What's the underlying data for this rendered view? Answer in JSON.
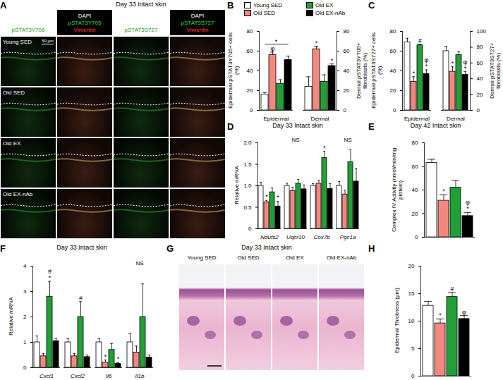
{
  "chart_data": [
    {
      "panel": "B",
      "type": "bar",
      "categories": [
        "Epidermal"
      ],
      "y_label": "Epidermal pSTAT3Y705+ cells (%)",
      "ylim": [
        0,
        80
      ],
      "yticks": [
        0,
        20,
        40,
        60,
        80
      ],
      "legend": "top",
      "series": [
        {
          "name": "Young SED",
          "color": "#ffffff",
          "values": [
            16
          ],
          "errors": [
            2
          ]
        },
        {
          "name": "Old SED",
          "color": "#f4877f",
          "values": [
            56
          ],
          "errors": [
            3
          ],
          "annotations": [
            "φ"
          ]
        },
        {
          "name": "Old EX",
          "color": "#21a038",
          "values": [
            27
          ],
          "errors": [
            4
          ]
        },
        {
          "name": "Old EX-nAb",
          "color": "#000000",
          "values": [
            51
          ],
          "errors": [
            4
          ]
        }
      ],
      "brackets": [
        {
          "category": "Epidermal",
          "from": "Young SED",
          "to": "Old EX-nAb",
          "label": "*"
        }
      ]
    },
    {
      "type": "bar",
      "categories": [
        "Dermal"
      ],
      "y2_label": "Dermal pSTAT3Y705+ fibroblasts (%)",
      "y2lim": [
        0,
        80
      ],
      "y2ticks": [
        0,
        20,
        40,
        60,
        80
      ],
      "series": [
        {
          "name": "Young SED",
          "color": "#ffffff",
          "axis": "y2",
          "values": [
            24
          ],
          "errors": [
            10
          ]
        },
        {
          "name": "Old SED",
          "color": "#f4877f",
          "axis": "y2",
          "values": [
            62
          ],
          "errors": [
            3
          ],
          "annotations": [
            "*"
          ]
        },
        {
          "name": "Old EX",
          "color": "#21a038",
          "axis": "y2",
          "values": [
            29
          ],
          "errors": [
            7
          ]
        },
        {
          "name": "Old EX-nAb",
          "color": "#000000",
          "axis": "y2",
          "values": [
            45
          ],
          "errors": [
            2
          ],
          "annotations": [
            "*"
          ]
        }
      ]
    },
    {
      "panel": "C",
      "type": "bar",
      "categories": [
        "Epidermal"
      ],
      "y_label": "Epidermal pSTAT3S727+ cells (%)",
      "ylim": [
        0,
        80
      ],
      "yticks": [
        0,
        20,
        40,
        60,
        80
      ],
      "series": [
        {
          "name": "Young SED",
          "color": "#ffffff",
          "values": [
            69
          ],
          "errors": [
            4
          ]
        },
        {
          "name": "Old SED",
          "color": "#f4877f",
          "values": [
            29
          ],
          "errors": [
            5
          ],
          "annotations": [
            "*"
          ]
        },
        {
          "name": "Old EX",
          "color": "#21a038",
          "values": [
            66
          ],
          "errors": [
            1
          ],
          "annotations": [
            "#"
          ]
        },
        {
          "name": "Old EX-nAb",
          "color": "#000000",
          "values": [
            37
          ],
          "errors": [
            4
          ],
          "annotations": [
            "φ\n*"
          ]
        }
      ]
    },
    {
      "type": "bar",
      "categories": [
        "Dermal"
      ],
      "y2_label": "Dermal pSTAT3S727+ fibroblasts (%)",
      "y2lim": [
        0,
        100
      ],
      "y2ticks": [
        0,
        20,
        40,
        60,
        80,
        100
      ],
      "series": [
        {
          "name": "Young SED",
          "color": "#ffffff",
          "axis": "y2",
          "values": [
            75
          ],
          "errors": [
            6
          ]
        },
        {
          "name": "Old SED",
          "color": "#f4877f",
          "axis": "y2",
          "values": [
            49
          ],
          "errors": [
            6
          ],
          "annotations": [
            "*"
          ]
        },
        {
          "name": "Old EX",
          "color": "#21a038",
          "axis": "y2",
          "values": [
            70
          ],
          "errors": [
            4
          ]
        },
        {
          "name": "Old EX-nAb",
          "color": "#000000",
          "axis": "y2",
          "values": [
            45
          ],
          "errors": [
            4
          ],
          "annotations": [
            "φ\n*"
          ]
        }
      ]
    },
    {
      "panel": "D",
      "type": "bar",
      "title": "Day 33 Intact skin",
      "categories": [
        "Ndufs2",
        "Uqcr10",
        "Cox7b",
        "Pgc1a"
      ],
      "y_label": "Relative mRNA",
      "ylim": [
        0,
        2
      ],
      "yticks": [
        0,
        0.5,
        {
          "value": 1,
          "label": "1.0"
        },
        1.5,
        {
          "value": 2,
          "label": "2.0"
        }
      ],
      "category_annotations": [
        null,
        "NS",
        null,
        "NS"
      ],
      "series": [
        {
          "name": "Young SED",
          "color": "#ffffff",
          "values": [
            1.0,
            1.0,
            1.0,
            1.0
          ],
          "errors": [
            0.08,
            0.06,
            0.05,
            0.1
          ]
        },
        {
          "name": "Old SED",
          "color": "#f4877f",
          "values": [
            0.62,
            0.88,
            1.05,
            0.8
          ],
          "errors": [
            0.04,
            0.08,
            0.08,
            0.1
          ],
          "annotations": [
            "*",
            null,
            null,
            null
          ]
        },
        {
          "name": "Old EX",
          "color": "#21a038",
          "values": [
            0.85,
            1.05,
            1.65,
            1.55
          ],
          "errors": [
            0.1,
            0.1,
            0.15,
            0.3
          ],
          "annotations": [
            null,
            null,
            "*",
            null
          ]
        },
        {
          "name": "Old EX-nAb",
          "color": "#000000",
          "values": [
            0.52,
            0.92,
            0.93,
            1.1
          ],
          "errors": [
            0.12,
            0.1,
            0.12,
            0.3
          ],
          "annotations": [
            "*",
            null,
            null,
            null
          ]
        }
      ]
    },
    {
      "panel": "E",
      "type": "bar",
      "title": "Day 42 Intact skin",
      "y_label": "Complex IV Activity (nmol/min/mg protein)",
      "ylim": [
        0,
        80
      ],
      "yticks": [
        0,
        20,
        40,
        60,
        80
      ],
      "series": [
        {
          "name": "Young SED",
          "color": "#ffffff",
          "values": [
            63
          ],
          "errors": [
            3
          ]
        },
        {
          "name": "Old SED",
          "color": "#f4877f",
          "values": [
            31
          ],
          "errors": [
            5
          ],
          "annotations": [
            "*"
          ]
        },
        {
          "name": "Old EX",
          "color": "#21a038",
          "values": [
            42
          ],
          "errors": [
            6
          ]
        },
        {
          "name": "Old EX-nAb",
          "color": "#000000",
          "values": [
            18
          ],
          "errors": [
            3
          ],
          "annotations": [
            "φ\n*"
          ]
        }
      ]
    },
    {
      "panel": "F",
      "type": "bar",
      "title": "Day 33 Intact skin",
      "categories": [
        "Cxcl1",
        "Cxcl2",
        "Il6",
        "Il1b"
      ],
      "y_label": "Relative mRNA",
      "ylim": [
        0,
        4
      ],
      "yticks": [
        0,
        1,
        2,
        3,
        4
      ],
      "category_annotations": [
        null,
        null,
        null,
        "NS"
      ],
      "series": [
        {
          "name": "Young SED",
          "color": "#ffffff",
          "values": [
            1.0,
            1.0,
            1.0,
            1.0
          ],
          "errors": [
            0.25,
            0.15,
            0.15,
            0.35
          ]
        },
        {
          "name": "Old SED",
          "color": "#f4877f",
          "values": [
            0.45,
            0.45,
            0.2,
            0.6
          ],
          "errors": [
            0.1,
            0.1,
            0.1,
            0.25
          ],
          "annotations": [
            null,
            null,
            "*",
            null
          ]
        },
        {
          "name": "Old EX",
          "color": "#21a038",
          "values": [
            2.8,
            2.0,
            0.7,
            2.0
          ],
          "errors": [
            0.6,
            0.6,
            0.25,
            1.3
          ],
          "annotations": [
            "#\n*",
            "#",
            null,
            null
          ]
        },
        {
          "name": "Old EX-nAb",
          "color": "#000000",
          "values": [
            1.05,
            0.42,
            0.15,
            0.4
          ],
          "errors": [
            0.1,
            0.08,
            0.05,
            0.1
          ],
          "annotations": [
            null,
            null,
            "*",
            null
          ]
        }
      ]
    },
    {
      "panel": "H",
      "type": "bar",
      "y_label": "Epidermal Thickness (µm)",
      "ylim": [
        0,
        20
      ],
      "yticks": [
        0,
        5,
        10,
        15,
        20
      ],
      "series": [
        {
          "name": "Young SED",
          "color": "#ffffff",
          "values": [
            12.8
          ],
          "errors": [
            0.8
          ]
        },
        {
          "name": "Old SED",
          "color": "#f4877f",
          "values": [
            9.6
          ],
          "errors": [
            0.8
          ],
          "annotations": [
            "*"
          ]
        },
        {
          "name": "Old EX",
          "color": "#21a038",
          "values": [
            14.4
          ],
          "errors": [
            0.8
          ],
          "annotations": [
            "#"
          ]
        },
        {
          "name": "Old EX-nAb",
          "color": "#000000",
          "values": [
            10.4
          ],
          "errors": [
            0.6
          ],
          "annotations": [
            "φ"
          ]
        }
      ]
    }
  ],
  "images": [
    {
      "panel": "A",
      "title": "Day 33 Intact skin",
      "columns": [
        [
          "pSTAT3Y705"
        ],
        [
          "DAPI",
          "pSTAT3Y705",
          "Vimentin"
        ],
        [
          "pSTAT3S727"
        ],
        [
          "DAPI",
          "pSTAT3S727",
          "Vimentin"
        ]
      ],
      "rows": [
        "Young SED",
        "Old SED",
        "Old EX",
        "Old EX-nAb"
      ],
      "scale_bar": "50 µm"
    },
    {
      "panel": "G",
      "title": "Day 33 Intact skin",
      "labels": [
        "Young SED",
        "Old SED",
        "Old EX",
        "Old EX-nAb"
      ]
    }
  ]
}
